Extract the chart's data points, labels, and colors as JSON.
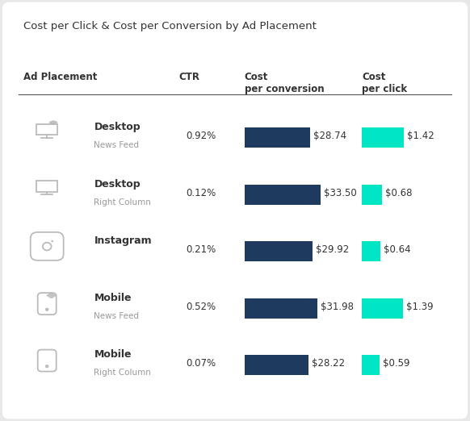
{
  "title": "Cost per Click & Cost per Conversion by Ad Placement",
  "header_placement": "Ad Placement",
  "header_ctr": "CTR",
  "header_cost_conv": "Cost\nper conversion",
  "header_cost_click": "Cost\nper click",
  "rows": [
    {
      "name": "Desktop",
      "sub": "News Feed",
      "icon": "desktop_wifi",
      "ctr": "0.92%",
      "cost_conv": 28.74,
      "cost_conv_str": "$28.74",
      "cost_click": 1.42,
      "cost_click_str": "$1.42"
    },
    {
      "name": "Desktop",
      "sub": "Right Column",
      "icon": "desktop",
      "ctr": "0.12%",
      "cost_conv": 33.5,
      "cost_conv_str": "$33.50",
      "cost_click": 0.68,
      "cost_click_str": "$0.68"
    },
    {
      "name": "Instagram",
      "sub": "",
      "icon": "instagram",
      "ctr": "0.21%",
      "cost_conv": 29.92,
      "cost_conv_str": "$29.92",
      "cost_click": 0.64,
      "cost_click_str": "$0.64"
    },
    {
      "name": "Mobile",
      "sub": "News Feed",
      "icon": "mobile_wifi",
      "ctr": "0.52%",
      "cost_conv": 31.98,
      "cost_conv_str": "$31.98",
      "cost_click": 1.39,
      "cost_click_str": "$1.39"
    },
    {
      "name": "Mobile",
      "sub": "Right Column",
      "icon": "mobile",
      "ctr": "0.07%",
      "cost_conv": 28.22,
      "cost_conv_str": "$28.22",
      "cost_click": 0.59,
      "cost_click_str": "$0.59"
    }
  ],
  "bar_color_conv": "#1F3A5F",
  "bar_color_click": "#00E5C3",
  "max_conv": 35,
  "max_click": 1.6,
  "bg_color": "#e8e8e8",
  "card_color": "#ffffff",
  "icon_color": "#bbbbbb",
  "text_dark": "#333333",
  "text_gray": "#999999",
  "line_color": "#555555"
}
